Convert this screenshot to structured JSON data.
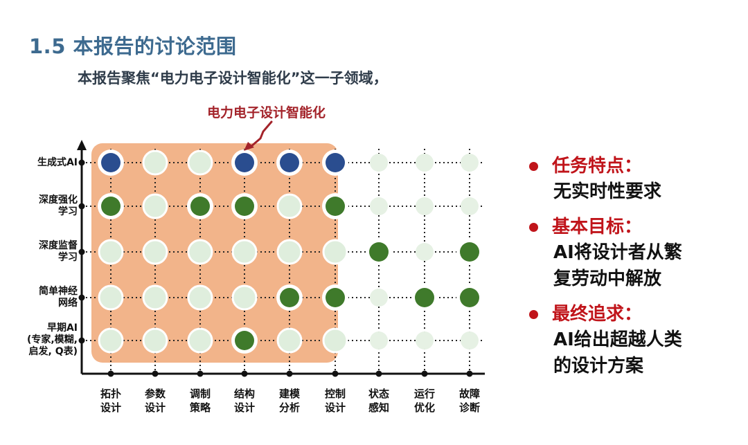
{
  "title": "1.5 本报告的讨论范围",
  "subtitle": "本报告聚焦“电力电子设计智能化”这一子领域，",
  "callout": "电力电子设计智能化",
  "diagram": {
    "y_labels": [
      "生成式AI",
      "深度强化\n学习",
      "深度监督\n学习",
      "简单神经\n网络",
      "早期AI\n(专家,模糊,\n启发, Q表)"
    ],
    "x_labels": [
      "拓扑\n设计",
      "参数\n设计",
      "调制\n策略",
      "结构\n设计",
      "建模\n分析",
      "控制\n设计",
      "状态\n感知",
      "运行\n优化",
      "故障\n诊断"
    ],
    "highlight_cols": 6,
    "grid": [
      [
        "blue",
        "empty",
        "empty",
        "blue",
        "blue",
        "blue",
        "empty",
        "empty",
        "empty"
      ],
      [
        "green",
        "empty",
        "green",
        "green",
        "empty",
        "green",
        "empty",
        "empty",
        "empty"
      ],
      [
        "empty",
        "empty",
        "empty",
        "empty",
        "empty",
        "empty",
        "green",
        "empty",
        "green"
      ],
      [
        "empty",
        "empty",
        "empty",
        "empty",
        "green",
        "green",
        "empty",
        "green",
        "green"
      ],
      [
        "empty",
        "empty",
        "empty",
        "green",
        "empty",
        "empty",
        "empty",
        "empty",
        "empty"
      ]
    ],
    "colors": {
      "blue": "#2a4d8f",
      "green": "#3f7a2b",
      "empty": "#dfeedd",
      "empty_faded": "#e6f1e4",
      "highlight": "#f2b48a",
      "axis": "#111111"
    }
  },
  "bullets": [
    {
      "head": "任务特点：",
      "text": "无实时性要求"
    },
    {
      "head": "基本目标：",
      "text": "AI将设计者从繁\n复劳动中解放"
    },
    {
      "head": "最终追求：",
      "text": "AI给出超越人类\n的设计方案"
    }
  ]
}
